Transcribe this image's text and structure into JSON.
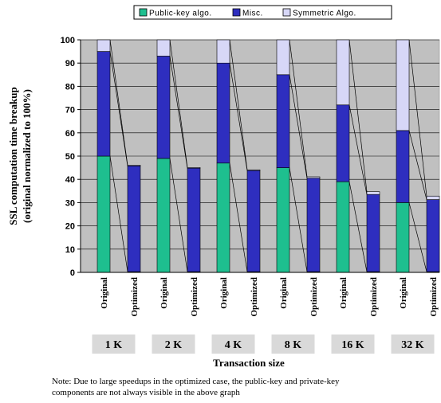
{
  "colors": {
    "public_key": "#1ebf8f",
    "misc": "#2e2ebf",
    "symmetric": "#d7d7f7",
    "plot_bg": "#c0c0c0",
    "group_label_bg": "#d9d9d9"
  },
  "chart_data": {
    "type": "bar",
    "stacked": true,
    "ylabel_lines": [
      "SSL computation time breakup",
      "(original normalized to 100%)"
    ],
    "xlabel": "Transaction size",
    "ylim": [
      0,
      100
    ],
    "yticks": [
      0,
      10,
      20,
      30,
      40,
      50,
      60,
      70,
      80,
      90,
      100
    ],
    "grid": true,
    "legend_position": "top",
    "legend": [
      "Public-key algo.",
      "Misc.",
      "Symmetric Algo."
    ],
    "groups": [
      "1 K",
      "2 K",
      "4 K",
      "8 K",
      "16 K",
      "32 K"
    ],
    "bar_labels": [
      "Original",
      "Optimized"
    ],
    "series": [
      {
        "name": "Public-key algo.",
        "original": [
          50,
          49,
          47,
          45,
          39,
          30
        ],
        "optimized": [
          0.3,
          0.3,
          0.3,
          0.3,
          0.3,
          0.3
        ]
      },
      {
        "name": "Misc.",
        "original": [
          45,
          44,
          43,
          40,
          33,
          31
        ],
        "optimized": [
          45.5,
          44.5,
          43.5,
          40.2,
          33.2,
          31
        ]
      },
      {
        "name": "Symmetric Algo.",
        "original": [
          5,
          7,
          10,
          15,
          28,
          39
        ],
        "optimized": [
          0.3,
          0.3,
          0.3,
          0.6,
          1.2,
          1.5
        ]
      }
    ]
  },
  "note": {
    "line1": "Note: Due to large speedups in the optimized case, the public-key and private-key",
    "line2": "components are not always visible in the above graph"
  }
}
